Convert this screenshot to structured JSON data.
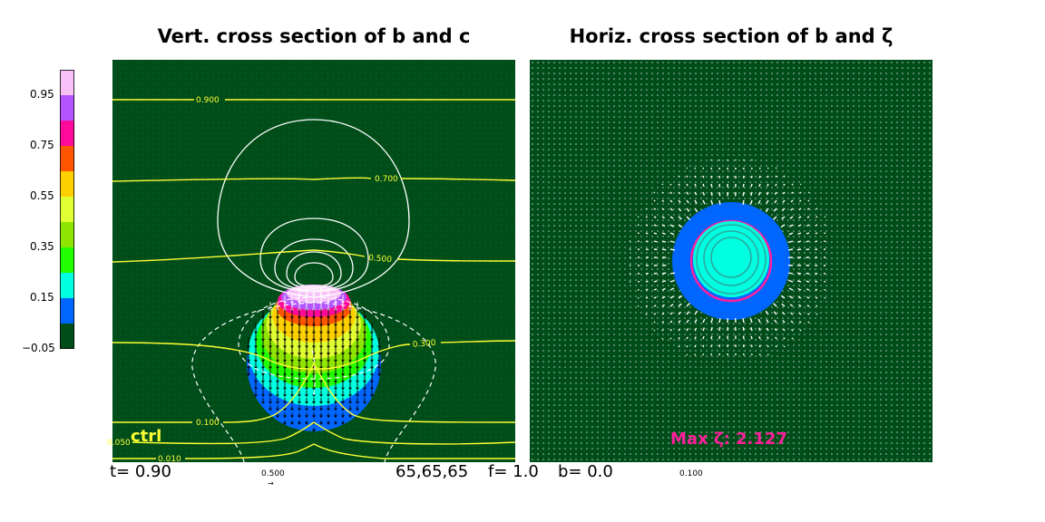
{
  "titles": {
    "left": "Vert. cross section of b and c",
    "right": "Horiz. cross section of b and ζ"
  },
  "colors": {
    "background": "#004d1a",
    "contour_b": "#ffff33",
    "contour_zeta": "#ffffff",
    "max_label": "#ff1f9d",
    "ctrl_label": "#ffff33"
  },
  "chart_data": [
    {
      "type": "heatmap",
      "title": "Vert. cross section of b and c",
      "colorbar": {
        "ticks": [
          "0.95",
          "0.75",
          "0.55",
          "0.35",
          "0.15",
          "−0.05"
        ],
        "bins": [
          {
            "from": -0.05,
            "to": 0.05,
            "color": "#004d1a"
          },
          {
            "from": 0.05,
            "to": 0.15,
            "color": "#0066ff"
          },
          {
            "from": 0.15,
            "to": 0.25,
            "color": "#00ffe0"
          },
          {
            "from": 0.25,
            "to": 0.35,
            "color": "#22ff00"
          },
          {
            "from": 0.35,
            "to": 0.45,
            "color": "#8ee600"
          },
          {
            "from": 0.45,
            "to": 0.55,
            "color": "#e0ff33"
          },
          {
            "from": 0.55,
            "to": 0.65,
            "color": "#ffd000"
          },
          {
            "from": 0.65,
            "to": 0.75,
            "color": "#ff5500"
          },
          {
            "from": 0.75,
            "to": 0.85,
            "color": "#ff0a9a"
          },
          {
            "from": 0.85,
            "to": 0.95,
            "color": "#b355ff"
          },
          {
            "from": 0.95,
            "to": 1.05,
            "color": "#f7c0f7"
          }
        ]
      },
      "contour_labels": [
        "0.900",
        "0.700",
        "0.500",
        "0.300",
        "0.100",
        "0.050",
        "0.010"
      ],
      "annotation": "ctrl"
    },
    {
      "type": "heatmap",
      "title": "Horiz. cross section of b and ζ",
      "annotation": "Max ζ: 2.127"
    }
  ],
  "footer": {
    "time": "t= 0.90",
    "grid": "65,65,65",
    "f": "f= 1.0",
    "b": "b= 0.0",
    "vector_scale_left": "0.500",
    "vector_scale_right": "0.100"
  }
}
